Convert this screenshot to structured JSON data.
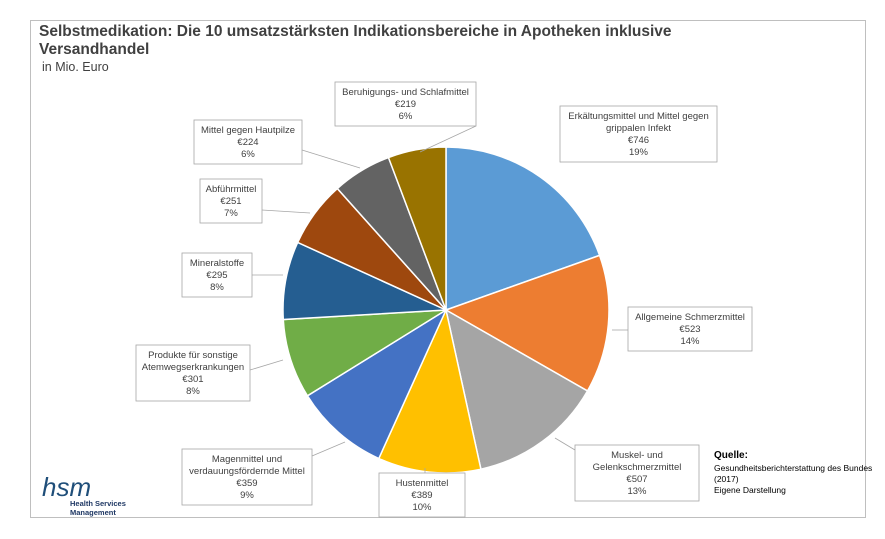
{
  "title": "Selbstmedikation: Die 10 umsatzstärksten Indikationsbereiche in Apotheken inklusive Versandhandel",
  "subtitle": "in Mio. Euro",
  "source": {
    "heading": "Quelle:",
    "line1": "Gesundheitsberichterstattung des Bundes (2017)",
    "line2": "Eigene Darstellung"
  },
  "logo": {
    "text": "hsm",
    "line1": "Health Services",
    "line2": "Management"
  },
  "chart_data": {
    "type": "pie",
    "unit": "Mio. Euro",
    "slices": [
      {
        "name": "Erkältungsmittel und Mittel gegen grippalen Infekt",
        "lines": [
          "Erkältungsmittel und Mittel gegen",
          "grippalen Infekt"
        ],
        "value": 746,
        "value_label": "€746",
        "percent_label": "19%",
        "color": "#5b9bd5"
      },
      {
        "name": "Allgemeine Schmerzmittel",
        "lines": [
          "Allgemeine Schmerzmittel"
        ],
        "value": 523,
        "value_label": "€523",
        "percent_label": "14%",
        "color": "#ed7d31"
      },
      {
        "name": "Muskel- und Gelenkschmerzmittel",
        "lines": [
          "Muskel- und",
          "Gelenkschmerzmittel"
        ],
        "value": 507,
        "value_label": "€507",
        "percent_label": "13%",
        "color": "#a5a5a5"
      },
      {
        "name": "Hustenmittel",
        "lines": [
          "Hustenmittel"
        ],
        "value": 389,
        "value_label": "€389",
        "percent_label": "10%",
        "color": "#ffc000"
      },
      {
        "name": "Magenmittel und verdauungsfördernde Mittel",
        "lines": [
          "Magenmittel und",
          "verdauungsfördernde Mittel"
        ],
        "value": 359,
        "value_label": "€359",
        "percent_label": "9%",
        "color": "#4472c4"
      },
      {
        "name": "Produkte für sonstige Atemwegserkrankungen",
        "lines": [
          "Produkte für sonstige",
          "Atemwegserkrankungen"
        ],
        "value": 301,
        "value_label": "€301",
        "percent_label": "8%",
        "color": "#70ad47"
      },
      {
        "name": "Mineralstoffe",
        "lines": [
          "Mineralstoffe"
        ],
        "value": 295,
        "value_label": "€295",
        "percent_label": "8%",
        "color": "#255e91"
      },
      {
        "name": "Abführmittel",
        "lines": [
          "Abführmittel"
        ],
        "value": 251,
        "value_label": "€251",
        "percent_label": "7%",
        "color": "#9e480e"
      },
      {
        "name": "Mittel gegen Hautpilze",
        "lines": [
          "Mittel gegen Hautpilze"
        ],
        "value": 224,
        "value_label": "€224",
        "percent_label": "6%",
        "color": "#636363"
      },
      {
        "name": "Beruhigungs- und Schlafmittel",
        "lines": [
          "Beruhigungs- und Schlafmittel"
        ],
        "value": 219,
        "value_label": "€219",
        "percent_label": "6%",
        "color": "#997300"
      }
    ]
  }
}
